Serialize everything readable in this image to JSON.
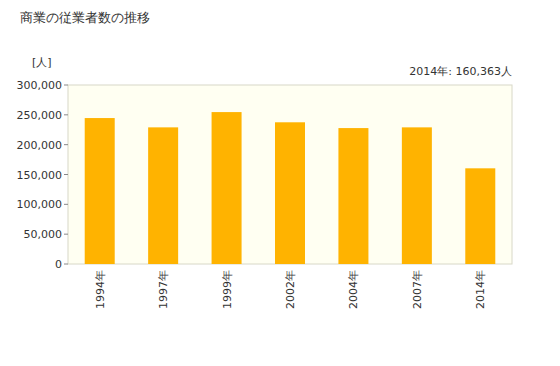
{
  "chart_data": {
    "type": "bar",
    "title": "商業の従業者数の推移",
    "y_label": "[人]",
    "annotation": "2014年: 160,363人",
    "categories": [
      "1994年",
      "1997年",
      "1999年",
      "2002年",
      "2004年",
      "2007年",
      "2014年"
    ],
    "values": [
      244600,
      229000,
      254600,
      237500,
      227800,
      229000,
      160363
    ],
    "color": "#ffb300",
    "ylim": [
      0,
      300000
    ],
    "yticks": [
      0,
      {
        "value": 50000,
        "label": "50,000"
      },
      {
        "value": 100000,
        "label": "100,000"
      },
      {
        "value": 150000,
        "label": "150,000"
      },
      {
        "value": 200000,
        "label": "200,000"
      },
      {
        "value": 250000,
        "label": "250,000"
      },
      {
        "value": 300000,
        "label": "300,000"
      }
    ],
    "grid": false
  }
}
